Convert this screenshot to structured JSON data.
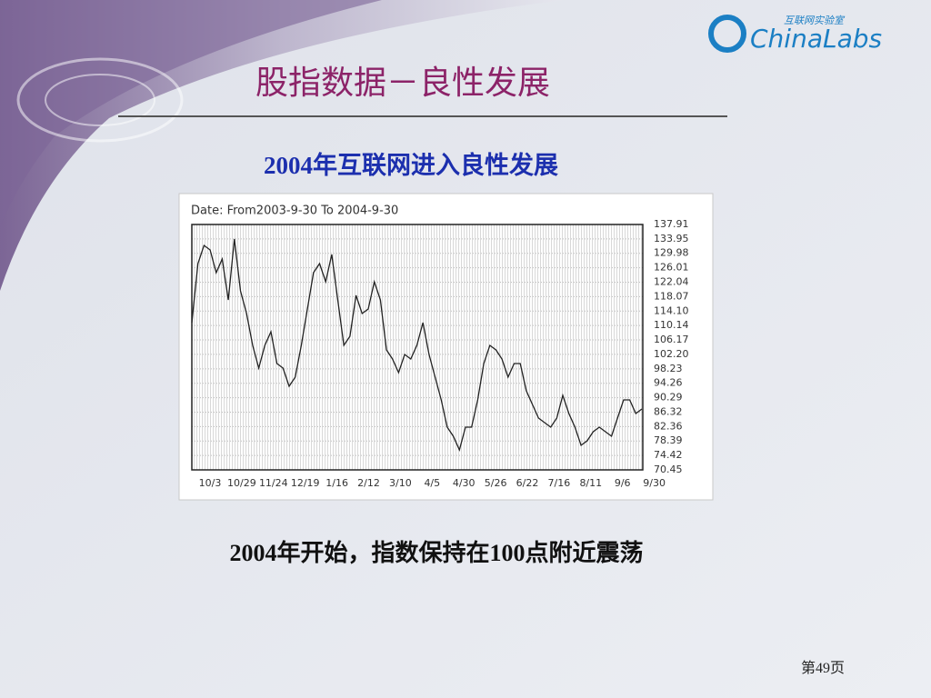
{
  "slide": {
    "title": "股指数据－良性发展",
    "subtitle": "2004年互联网进入良性发展",
    "caption": "2004年开始，指数保持在100点附近震荡",
    "page": "第49页"
  },
  "logo": {
    "name": "ChinaLabs",
    "tagline": "互联网实验室"
  },
  "chart_data": {
    "type": "line",
    "title": "Date: From2003-9-30 To 2004-9-30",
    "color": "#222222",
    "grid": true,
    "xticks": [
      "10/3",
      "10/29",
      "11/24",
      "12/19",
      "1/16",
      "2/12",
      "3/10",
      "4/5",
      "4/30",
      "5/26",
      "6/22",
      "7/16",
      "8/11",
      "9/6",
      "9/30"
    ],
    "values": [
      110.93,
      127.17,
      132.16,
      130.91,
      124.67,
      128.42,
      117.17,
      133.91,
      119.67,
      113.42,
      104.68,
      98.43,
      104.68,
      108.43,
      99.68,
      98.43,
      93.44,
      95.94,
      104.68,
      114.67,
      124.67,
      127.17,
      122.17,
      129.66,
      117.17,
      104.68,
      107.18,
      118.42,
      113.42,
      114.67,
      122.17,
      117.17,
      103.43,
      100.93,
      97.18,
      102.18,
      100.93,
      104.68,
      110.93,
      102.18,
      95.94,
      89.69,
      82.19,
      79.69,
      75.95,
      82.19,
      82.19,
      89.69,
      99.68,
      104.68,
      103.43,
      100.93,
      95.94,
      99.68,
      99.68,
      92.19,
      88.44,
      84.69,
      83.44,
      82.19,
      84.69,
      90.94,
      85.94,
      82.19,
      77.2,
      78.45,
      80.94,
      82.19,
      80.94,
      79.69,
      84.69,
      89.69,
      89.69,
      85.94,
      87.19
    ],
    "ylim": [
      70.45,
      137.91
    ],
    "yticks": [
      137.91,
      133.95,
      129.98,
      126.01,
      122.04,
      118.07,
      {
        "value": 114.1,
        "label": "114.10"
      },
      110.14,
      106.17,
      {
        "value": 102.2,
        "label": "102.20"
      },
      98.23,
      94.26,
      90.29,
      86.32,
      82.36,
      78.39,
      74.42,
      70.45
    ]
  }
}
